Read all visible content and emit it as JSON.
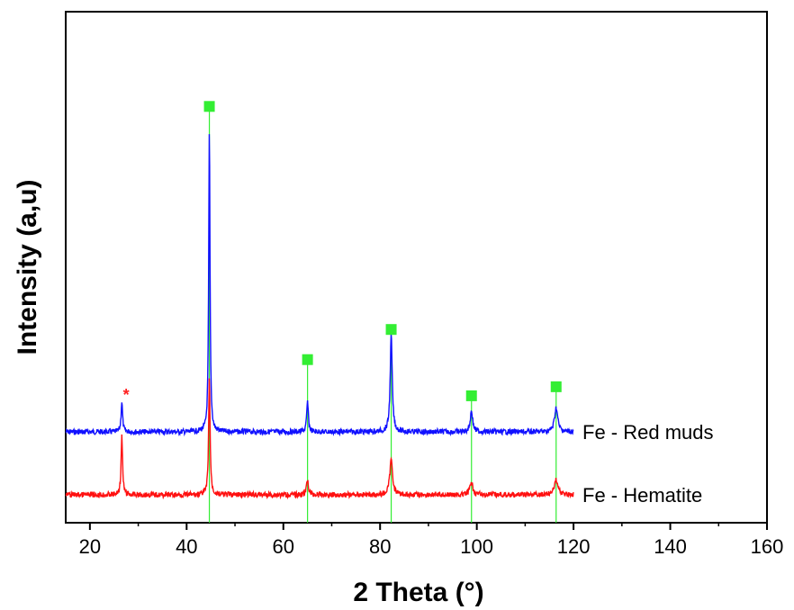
{
  "chart_data": {
    "type": "line",
    "xlabel": "2 Theta (°)",
    "ylabel": "Intensity (a,u)",
    "xlim": [
      15,
      160
    ],
    "xticks": [
      20,
      40,
      60,
      80,
      100,
      120,
      140,
      160
    ],
    "y_ticks_shown": false,
    "x_range_data": [
      15,
      120
    ],
    "series": [
      {
        "name": "Fe - Red muds",
        "color": "#1010ff",
        "baseline": 0.0,
        "peaks": [
          {
            "x": 26.6,
            "height": 0.1,
            "width": 0.18
          },
          {
            "x": 44.7,
            "height": 1.0,
            "width": 0.16
          },
          {
            "x": 65.0,
            "height": 0.1,
            "width": 0.2
          },
          {
            "x": 82.3,
            "height": 0.32,
            "width": 0.25
          },
          {
            "x": 98.9,
            "height": 0.07,
            "width": 0.3
          },
          {
            "x": 116.4,
            "height": 0.08,
            "width": 0.4
          }
        ]
      },
      {
        "name": "Fe - Hematite",
        "color": "#ff1010",
        "baseline": 0.0,
        "peaks": [
          {
            "x": 26.6,
            "height": 0.2,
            "width": 0.18
          },
          {
            "x": 44.7,
            "height": 0.4,
            "width": 0.18
          },
          {
            "x": 65.0,
            "height": 0.05,
            "width": 0.25
          },
          {
            "x": 82.3,
            "height": 0.12,
            "width": 0.35
          },
          {
            "x": 98.9,
            "height": 0.04,
            "width": 0.4
          },
          {
            "x": 116.4,
            "height": 0.05,
            "width": 0.5
          }
        ]
      }
    ],
    "reference_lines": {
      "color": "#33ee33",
      "x": [
        44.7,
        65.0,
        82.3,
        98.9,
        116.4
      ],
      "heights": [
        1.02,
        0.18,
        0.28,
        0.06,
        0.09
      ]
    },
    "annotations": [
      {
        "text": "*",
        "x": 27.5,
        "color": "#ff2020"
      }
    ],
    "grid": false
  }
}
